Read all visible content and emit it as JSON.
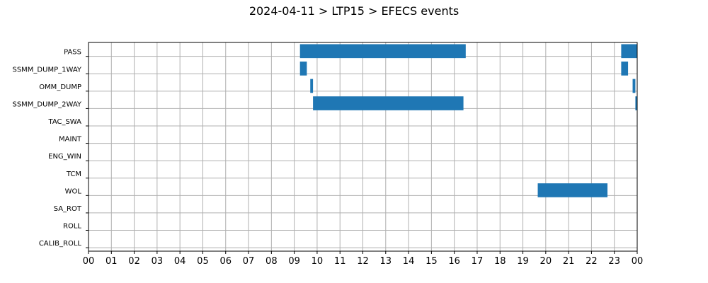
{
  "chart_data": {
    "type": "bar",
    "orientation": "horizontal-timeline",
    "title": "2024-04-11 > LTP15 > EFECS events",
    "xlabel": "",
    "ylabel": "",
    "x_unit": "hours",
    "xlim": [
      0,
      24
    ],
    "xticks": [
      "00",
      "01",
      "02",
      "03",
      "04",
      "05",
      "06",
      "07",
      "08",
      "09",
      "10",
      "11",
      "12",
      "13",
      "14",
      "15",
      "16",
      "17",
      "18",
      "19",
      "20",
      "21",
      "22",
      "23",
      "00"
    ],
    "categories": [
      "PASS",
      "SSMM_DUMP_1WAY",
      "OMM_DUMP",
      "SSMM_DUMP_2WAY",
      "TAC_SWA",
      "MAINT",
      "ENG_WIN",
      "TCM",
      "WOL",
      "SA_ROT",
      "ROLL",
      "CALIB_ROLL"
    ],
    "grid": true,
    "legend": "none",
    "bar_color": "#1f77b4",
    "events": [
      {
        "category": "PASS",
        "start": 9.25,
        "end": 16.5
      },
      {
        "category": "PASS",
        "start": 23.3,
        "end": 24.0
      },
      {
        "category": "SSMM_DUMP_1WAY",
        "start": 9.25,
        "end": 9.55
      },
      {
        "category": "SSMM_DUMP_1WAY",
        "start": 23.3,
        "end": 23.6
      },
      {
        "category": "OMM_DUMP",
        "start": 9.7,
        "end": 9.82
      },
      {
        "category": "OMM_DUMP",
        "start": 23.8,
        "end": 23.92
      },
      {
        "category": "SSMM_DUMP_2WAY",
        "start": 9.82,
        "end": 16.4
      },
      {
        "category": "SSMM_DUMP_2WAY",
        "start": 23.92,
        "end": 24.0
      },
      {
        "category": "WOL",
        "start": 19.65,
        "end": 22.7
      }
    ]
  }
}
